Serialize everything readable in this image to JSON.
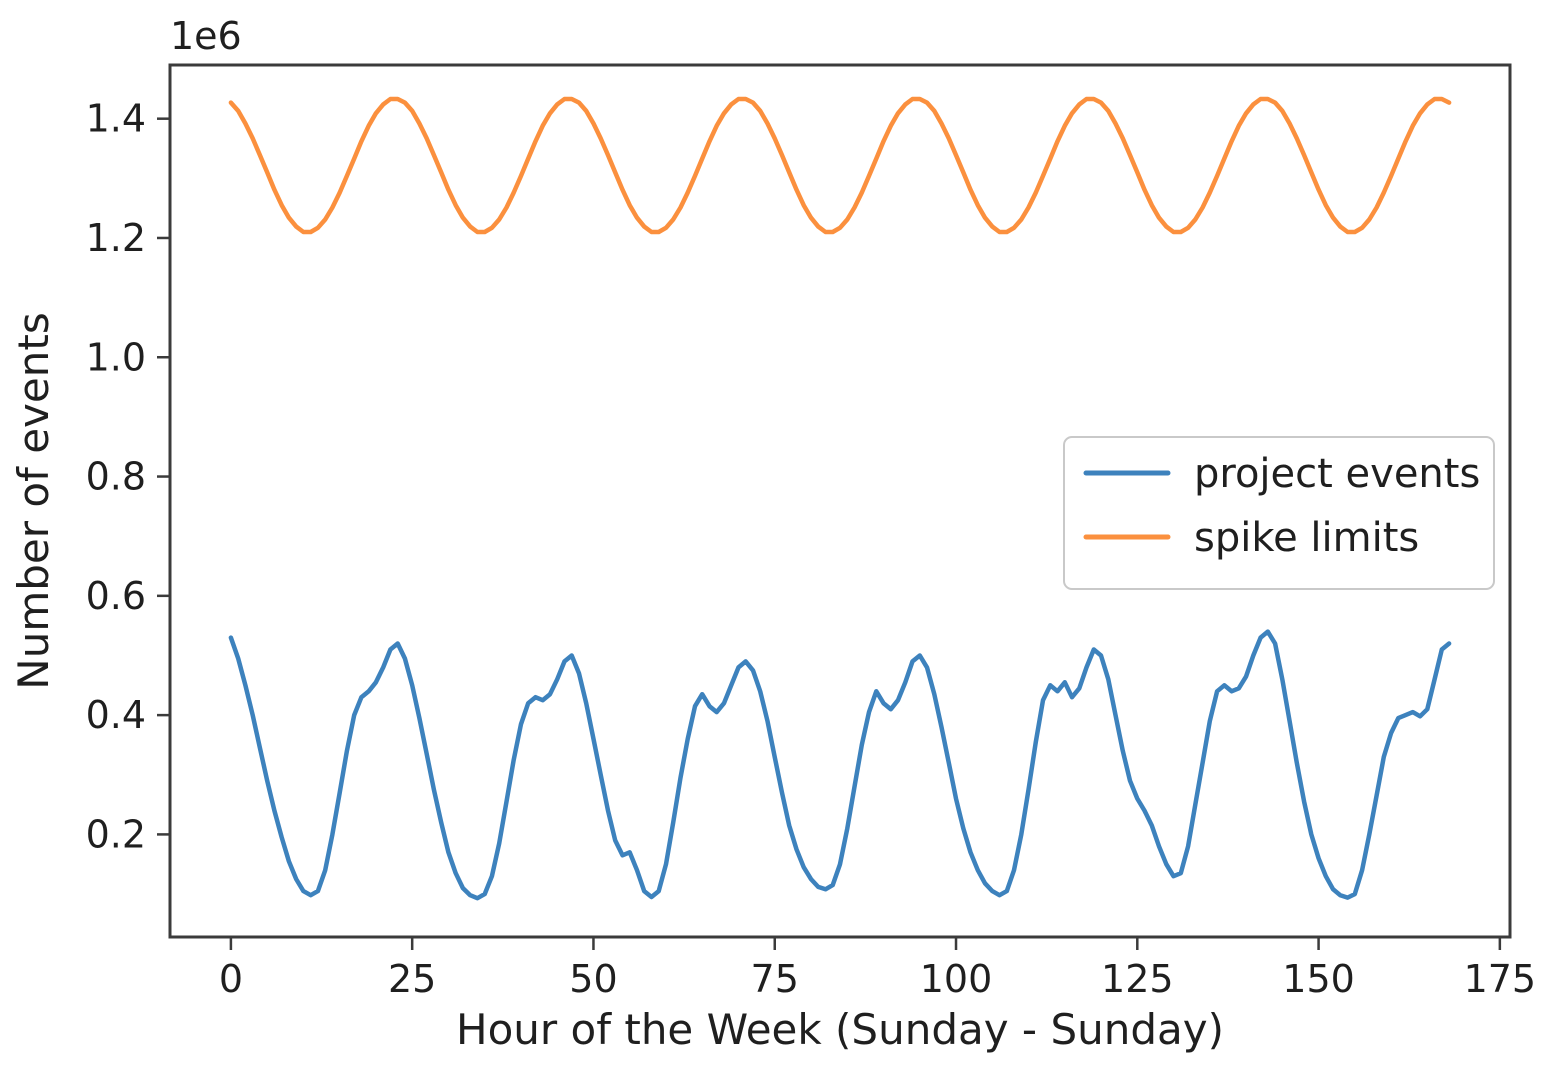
{
  "figure": {
    "background": "#ffffff",
    "spine_color": "#3b3b3b",
    "text_color": "#1f1f1f"
  },
  "chart_data": {
    "type": "line",
    "title": "",
    "xlabel": "Hour of the Week (Sunday - Sunday)",
    "ylabel": "Number of events",
    "y_offset_label": "1e6",
    "y_unit_multiplier": 1000000,
    "grid": false,
    "xlim": [
      -8.4,
      176.4
    ],
    "ylim": [
      0.028,
      1.49
    ],
    "xticks": [
      0,
      25,
      50,
      75,
      100,
      125,
      150,
      175
    ],
    "xtick_labels": [
      "0",
      "25",
      "50",
      "75",
      "100",
      "125",
      "150",
      "175"
    ],
    "yticks": [
      0.2,
      0.4,
      0.6,
      0.8,
      1.0,
      1.2,
      1.4
    ],
    "ytick_labels": [
      "0.2",
      "0.4",
      "0.6",
      "0.8",
      "1.0",
      "1.2",
      "1.4"
    ],
    "x": {
      "start": 0,
      "step": 1,
      "end": 168,
      "units": "hours"
    },
    "legend": {
      "position": "center right",
      "border_color": "#c9c9c9",
      "background": "#ffffff",
      "labels": [
        "project events",
        "spike limits"
      ]
    },
    "series": [
      {
        "name": "project events",
        "color": "#3d82bd",
        "values": [
          0.53,
          0.495,
          0.45,
          0.4,
          0.345,
          0.29,
          0.24,
          0.195,
          0.155,
          0.125,
          0.105,
          0.098,
          0.105,
          0.14,
          0.2,
          0.27,
          0.34,
          0.4,
          0.43,
          0.44,
          0.455,
          0.48,
          0.51,
          0.52,
          0.495,
          0.45,
          0.395,
          0.335,
          0.275,
          0.22,
          0.17,
          0.135,
          0.11,
          0.098,
          0.093,
          0.1,
          0.13,
          0.185,
          0.255,
          0.325,
          0.385,
          0.42,
          0.43,
          0.425,
          0.435,
          0.46,
          0.49,
          0.5,
          0.47,
          0.42,
          0.36,
          0.3,
          0.24,
          0.19,
          0.165,
          0.17,
          0.14,
          0.105,
          0.095,
          0.105,
          0.15,
          0.22,
          0.295,
          0.36,
          0.415,
          0.435,
          0.415,
          0.405,
          0.42,
          0.45,
          0.48,
          0.49,
          0.475,
          0.44,
          0.39,
          0.33,
          0.27,
          0.215,
          0.175,
          0.145,
          0.125,
          0.112,
          0.108,
          0.115,
          0.15,
          0.21,
          0.28,
          0.35,
          0.405,
          0.44,
          0.42,
          0.41,
          0.425,
          0.455,
          0.49,
          0.5,
          0.48,
          0.435,
          0.38,
          0.32,
          0.26,
          0.21,
          0.17,
          0.14,
          0.118,
          0.105,
          0.098,
          0.105,
          0.14,
          0.2,
          0.275,
          0.355,
          0.425,
          0.45,
          0.44,
          0.455,
          0.43,
          0.445,
          0.48,
          0.51,
          0.5,
          0.46,
          0.4,
          0.34,
          0.29,
          0.26,
          0.24,
          0.215,
          0.18,
          0.15,
          0.13,
          0.135,
          0.18,
          0.25,
          0.32,
          0.39,
          0.44,
          0.45,
          0.44,
          0.445,
          0.465,
          0.5,
          0.53,
          0.54,
          0.52,
          0.46,
          0.39,
          0.32,
          0.255,
          0.2,
          0.16,
          0.13,
          0.108,
          0.098,
          0.094,
          0.1,
          0.14,
          0.2,
          0.265,
          0.33,
          0.37,
          0.395,
          0.4,
          0.405,
          0.398,
          0.41,
          0.46,
          0.51,
          0.52
        ]
      },
      {
        "name": "spike limits",
        "color": "#fb903e",
        "values": [
          1.427,
          1.413,
          1.392,
          1.367,
          1.339,
          1.31,
          1.281,
          1.255,
          1.234,
          1.219,
          1.21,
          1.21,
          1.217,
          1.231,
          1.251,
          1.276,
          1.304,
          1.333,
          1.362,
          1.388,
          1.409,
          1.424,
          1.433,
          1.433,
          1.427,
          1.413,
          1.392,
          1.367,
          1.339,
          1.31,
          1.281,
          1.255,
          1.234,
          1.219,
          1.21,
          1.21,
          1.217,
          1.231,
          1.251,
          1.276,
          1.304,
          1.333,
          1.362,
          1.388,
          1.409,
          1.424,
          1.433,
          1.433,
          1.427,
          1.413,
          1.392,
          1.367,
          1.339,
          1.31,
          1.281,
          1.255,
          1.234,
          1.219,
          1.21,
          1.21,
          1.217,
          1.231,
          1.251,
          1.276,
          1.304,
          1.333,
          1.362,
          1.388,
          1.409,
          1.424,
          1.433,
          1.433,
          1.427,
          1.413,
          1.392,
          1.367,
          1.339,
          1.31,
          1.281,
          1.255,
          1.234,
          1.219,
          1.21,
          1.21,
          1.217,
          1.231,
          1.251,
          1.276,
          1.304,
          1.333,
          1.362,
          1.388,
          1.409,
          1.424,
          1.433,
          1.433,
          1.427,
          1.413,
          1.392,
          1.367,
          1.339,
          1.31,
          1.281,
          1.255,
          1.234,
          1.219,
          1.21,
          1.21,
          1.217,
          1.231,
          1.251,
          1.276,
          1.304,
          1.333,
          1.362,
          1.388,
          1.409,
          1.424,
          1.433,
          1.433,
          1.427,
          1.413,
          1.392,
          1.367,
          1.339,
          1.31,
          1.281,
          1.255,
          1.234,
          1.219,
          1.21,
          1.21,
          1.217,
          1.231,
          1.251,
          1.276,
          1.304,
          1.333,
          1.362,
          1.388,
          1.409,
          1.424,
          1.433,
          1.433,
          1.427,
          1.413,
          1.392,
          1.367,
          1.339,
          1.31,
          1.281,
          1.255,
          1.234,
          1.219,
          1.21,
          1.21,
          1.217,
          1.231,
          1.251,
          1.276,
          1.304,
          1.333,
          1.362,
          1.388,
          1.409,
          1.424,
          1.433,
          1.433,
          1.427
        ]
      }
    ]
  }
}
